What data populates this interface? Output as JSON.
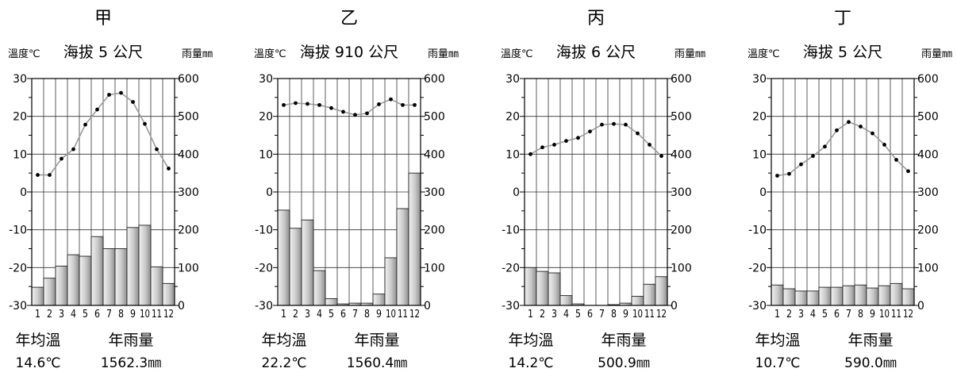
{
  "axis_labels": {
    "temp_unit": "溫度℃",
    "rain_unit": "雨量㎜",
    "summary_temp_label": "年均溫",
    "summary_rain_label": "年雨量"
  },
  "chart_data": [
    {
      "type": "bar",
      "title": "甲",
      "subtitle": "海拔 5 公尺",
      "categories": [
        "1",
        "2",
        "3",
        "4",
        "5",
        "6",
        "7",
        "8",
        "9",
        "10",
        "11",
        "12"
      ],
      "temp_ticks": [
        "30",
        "20",
        "10",
        "0",
        "-10",
        "-20",
        "-30"
      ],
      "rain_ticks": [
        "600",
        "500",
        "400",
        "300",
        "200",
        "100",
        "0"
      ],
      "temp_lim": [
        -30,
        30
      ],
      "rain_lim": [
        0,
        600
      ],
      "grid": true,
      "series": [
        {
          "kind": "rainfall-bar",
          "values": [
            48,
            72,
            104,
            134,
            130,
            182,
            150,
            150,
            206,
            212,
            102,
            58
          ]
        },
        {
          "kind": "temperature-line",
          "values": [
            4.5,
            4.5,
            8.8,
            11.3,
            17.8,
            21.8,
            25.7,
            26.2,
            23.8,
            18.0,
            11.3,
            6.2
          ]
        }
      ],
      "annual_temp": "14.6℃",
      "annual_rain": "1562.3㎜"
    },
    {
      "type": "bar",
      "title": "乙",
      "subtitle": "海拔 910 公尺",
      "categories": [
        "1",
        "2",
        "3",
        "4",
        "5",
        "6",
        "7",
        "8",
        "9",
        "10",
        "11",
        "12"
      ],
      "temp_ticks": [
        "30",
        "20",
        "10",
        "0",
        "-10",
        "-20",
        "-30"
      ],
      "rain_ticks": [
        "600",
        "500",
        "400",
        "300",
        "200",
        "100",
        "0"
      ],
      "temp_lim": [
        -30,
        30
      ],
      "rain_lim": [
        0,
        600
      ],
      "grid": true,
      "series": [
        {
          "kind": "rainfall-bar",
          "values": [
            252,
            204,
            226,
            92,
            18,
            4,
            6,
            6,
            30,
            126,
            256,
            350
          ]
        },
        {
          "kind": "temperature-line",
          "values": [
            23.0,
            23.5,
            23.3,
            23.0,
            22.2,
            21.2,
            20.4,
            20.8,
            23.2,
            24.5,
            23.0,
            23.0
          ]
        }
      ],
      "annual_temp": "22.2℃",
      "annual_rain": "1560.4㎜"
    },
    {
      "type": "bar",
      "title": "丙",
      "subtitle": "海拔 6 公尺",
      "categories": [
        "1",
        "2",
        "3",
        "4",
        "5",
        "6",
        "7",
        "8",
        "9",
        "10",
        "11",
        "12"
      ],
      "temp_ticks": [
        "30",
        "20",
        "10",
        "0",
        "-10",
        "-20",
        "-30"
      ],
      "rain_ticks": [
        "600",
        "500",
        "400",
        "300",
        "200",
        "100",
        "0"
      ],
      "temp_lim": [
        -30,
        30
      ],
      "rain_lim": [
        0,
        600
      ],
      "grid": true,
      "series": [
        {
          "kind": "rainfall-bar",
          "values": [
            100,
            90,
            86,
            26,
            4,
            0,
            0,
            2,
            6,
            24,
            56,
            76
          ]
        },
        {
          "kind": "temperature-line",
          "values": [
            10.0,
            11.8,
            12.5,
            13.5,
            14.3,
            16.0,
            17.8,
            18.0,
            17.8,
            15.5,
            12.5,
            9.5
          ]
        }
      ],
      "annual_temp": "14.2℃",
      "annual_rain": "500.9㎜"
    },
    {
      "type": "bar",
      "title": "丁",
      "subtitle": "海拔 5 公尺",
      "categories": [
        "1",
        "2",
        "3",
        "4",
        "5",
        "6",
        "7",
        "8",
        "9",
        "10",
        "11",
        "12"
      ],
      "temp_ticks": [
        "30",
        "20",
        "10",
        "0",
        "-10",
        "-20",
        "-30"
      ],
      "rain_ticks": [
        "600",
        "500",
        "400",
        "300",
        "200",
        "100",
        "0"
      ],
      "temp_lim": [
        -30,
        30
      ],
      "rain_lim": [
        0,
        600
      ],
      "grid": true,
      "series": [
        {
          "kind": "rainfall-bar",
          "values": [
            54,
            44,
            38,
            38,
            48,
            48,
            52,
            54,
            46,
            52,
            58,
            44
          ]
        },
        {
          "kind": "temperature-line",
          "values": [
            4.3,
            4.8,
            7.3,
            9.5,
            12.0,
            16.3,
            18.5,
            17.3,
            15.5,
            12.5,
            8.5,
            5.5
          ]
        }
      ],
      "annual_temp": "10.7℃",
      "annual_rain": "590.0㎜"
    }
  ]
}
